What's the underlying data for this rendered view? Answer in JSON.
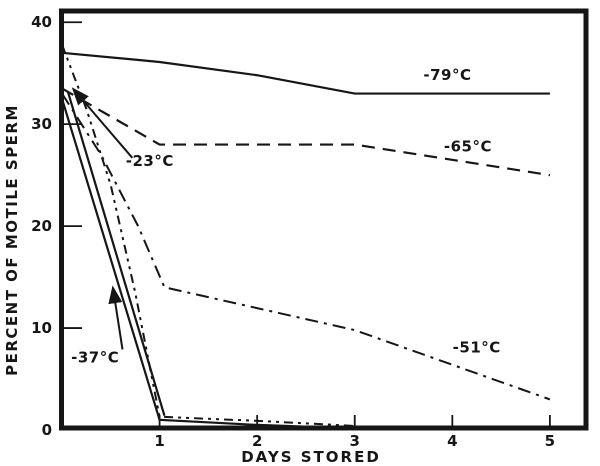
{
  "figure": {
    "background": "#ffffff",
    "ink_color": "#161616"
  },
  "chart_data": {
    "type": "line",
    "title": "",
    "xlabel": "DAYS STORED",
    "ylabel": "PERCENT OF MOTILE SPERM",
    "xlim": [
      0,
      5.37
    ],
    "ylim": [
      0,
      41.1
    ],
    "grid": false,
    "legend": "inline-labels-with-arrows",
    "x_tick_values": [
      1,
      2,
      3,
      4,
      5
    ],
    "x_tick_labels": [
      "1",
      "2",
      "3",
      "4",
      "5"
    ],
    "y_tick_values": [
      0,
      10,
      20,
      30,
      40
    ],
    "y_tick_labels": [
      "0",
      "10",
      "20",
      "30",
      "40"
    ],
    "series": [
      {
        "name": "-79°C",
        "style": "solid",
        "points": [
          [
            0,
            37
          ],
          [
            1,
            36.1
          ],
          [
            2,
            34.8
          ],
          [
            3,
            33
          ],
          [
            5,
            33
          ]
        ],
        "label": {
          "text": "-79°C",
          "x": 3.95,
          "y": 34.8
        }
      },
      {
        "name": "-65°C",
        "style": "dash",
        "points": [
          [
            0,
            33.5
          ],
          [
            1,
            28
          ],
          [
            3,
            28
          ],
          [
            5,
            25
          ]
        ],
        "label": {
          "text": "-65°C",
          "x": 4.16,
          "y": 27.8
        }
      },
      {
        "name": "-51°C",
        "style": "dashdot",
        "points": [
          [
            0,
            33
          ],
          [
            0.4,
            27
          ],
          [
            0.78,
            20
          ],
          [
            1.05,
            14
          ],
          [
            3,
            9.8
          ],
          [
            5,
            3
          ]
        ],
        "label": {
          "text": "-51°C",
          "x": 4.25,
          "y": 8.1
        }
      },
      {
        "name": "-23°C",
        "style": "dashdotdot",
        "points": [
          [
            0,
            37.8
          ],
          [
            0.25,
            31.5
          ],
          [
            0.5,
            24
          ],
          [
            0.75,
            13.5
          ],
          [
            1,
            1.3
          ],
          [
            2,
            0.9
          ],
          [
            3,
            0.4
          ]
        ],
        "label": {
          "text": "-23°C",
          "x": 0.9,
          "y": 26.4
        },
        "arrow": {
          "from": [
            0.72,
            26.7
          ],
          "to": [
            0.12,
            33.4
          ]
        }
      },
      {
        "name": "-37°C",
        "style": "solid",
        "points": [
          [
            0,
            32.5
          ],
          [
            1,
            1.0
          ],
          [
            2,
            0.5
          ],
          [
            3,
            0.15
          ]
        ],
        "points2": [
          [
            0.06,
            33.2
          ],
          [
            1.05,
            1.4
          ]
        ],
        "label": {
          "text": "-37°C",
          "x": 0.34,
          "y": 7.1
        },
        "arrow": {
          "from": [
            0.62,
            7.9
          ],
          "to": [
            0.523,
            13.9
          ]
        }
      }
    ]
  }
}
